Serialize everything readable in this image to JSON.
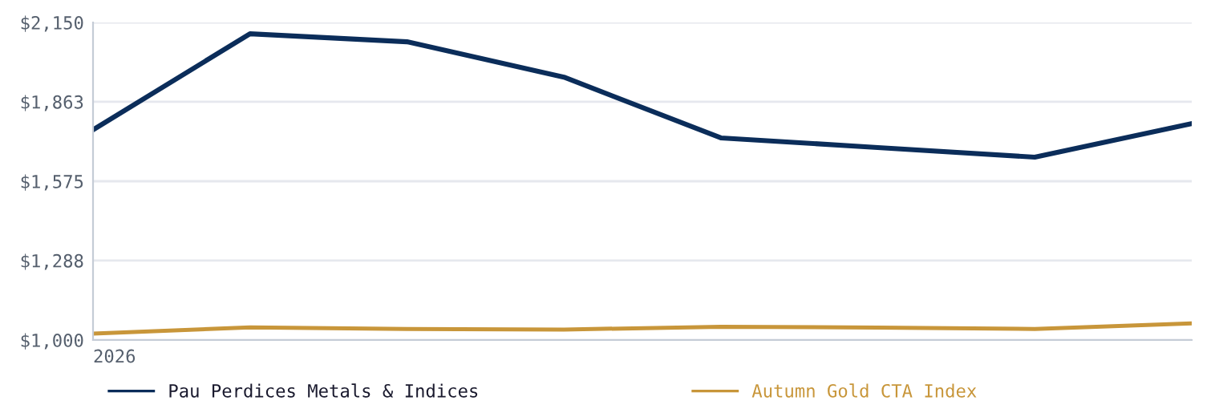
{
  "chart_data": {
    "type": "line",
    "categories": [
      "2026",
      null,
      null,
      null,
      null,
      null,
      null,
      null
    ],
    "series": [
      {
        "name": "Pau Perdices Metals & Indices",
        "color": "#0b2d5a",
        "values": [
          1761,
          2109,
          2080,
          1952,
          1732,
          1697,
          1662,
          1784
        ]
      },
      {
        "name": "Autumn Gold CTA Index",
        "color": "#c8963a",
        "values": [
          1023,
          1046,
          1040,
          1038,
          1048,
          1045,
          1040,
          1060
        ]
      }
    ],
    "ylim": [
      1000,
      2150
    ],
    "yticks": [
      {
        "value": 1000,
        "label": "$1,000"
      },
      {
        "value": 1288,
        "label": "$1,288"
      },
      {
        "value": 1575,
        "label": "$1,575"
      },
      {
        "value": 1863,
        "label": "$1,863"
      },
      {
        "value": 2150,
        "label": "$2,150"
      }
    ],
    "grid": "y",
    "legend": "bottom",
    "marker": "none",
    "line_style": "solid"
  }
}
